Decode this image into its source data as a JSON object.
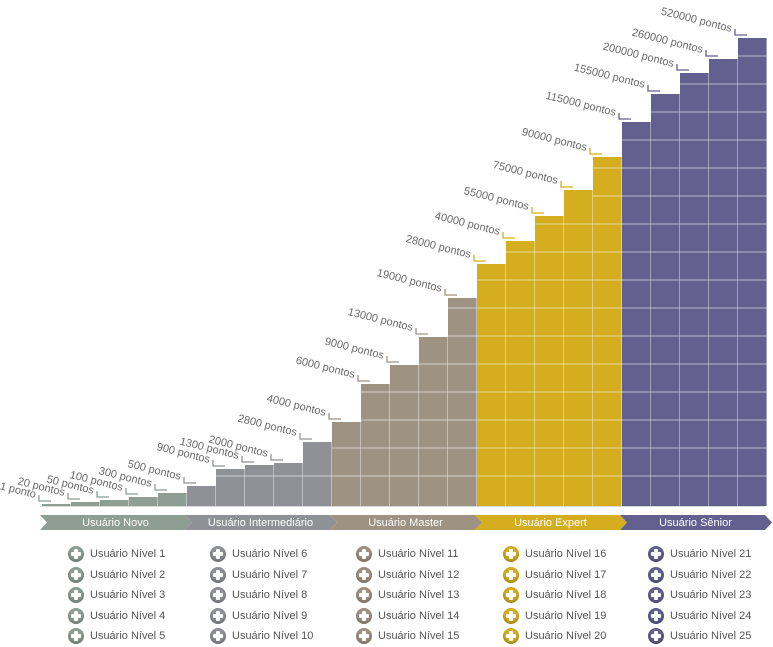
{
  "chart_data": {
    "type": "bar",
    "title": "",
    "xlabel": "",
    "ylabel": "",
    "groups": [
      {
        "name": "Usuário Novo",
        "color": "#8e9e94",
        "levels": [
          "Usuário Nível 1",
          "Usuário Nível 2",
          "Usuário Nível 3",
          "Usuário Nível 4",
          "Usuário Nível 5"
        ],
        "labels": [
          "1 ponto",
          "20 pontos",
          "50 pontos",
          "100 pontos",
          "300 pontos"
        ],
        "values": [
          1,
          20,
          50,
          100,
          300
        ]
      },
      {
        "name": "Usuário Intermediário",
        "color": "#8f9196",
        "levels": [
          "Usuário Nível 6",
          "Usuário Nível 7",
          "Usuário Nível 8",
          "Usuário Nível 9",
          "Usuário Nível 10"
        ],
        "labels": [
          "500 pontos",
          "900 pontos",
          "1300 pontos",
          "2000 pontos",
          "2800 pontos"
        ],
        "values": [
          500,
          900,
          1300,
          2000,
          2800
        ]
      },
      {
        "name": "Usuário Master",
        "color": "#9e9282",
        "levels": [
          "Usuário Nível 11",
          "Usuário Nível 12",
          "Usuário Nível 13",
          "Usuário Nível 14",
          "Usuário Nível 15"
        ],
        "labels": [
          "4000 pontos",
          "6000 pontos",
          "9000 pontos",
          "13000 pontos",
          "19000 pontos"
        ],
        "values": [
          4000,
          6000,
          9000,
          13000,
          19000
        ]
      },
      {
        "name": "Usuário Expert",
        "color": "#d4ae1e",
        "levels": [
          "Usuário Nível 16",
          "Usuário Nível 17",
          "Usuário Nível 18",
          "Usuário Nível 19",
          "Usuário Nível 20"
        ],
        "labels": [
          "28000 pontos",
          "40000 pontos",
          "55000 pontos",
          "75000 pontos",
          "90000 pontos"
        ],
        "values": [
          28000,
          40000,
          55000,
          75000,
          90000
        ]
      },
      {
        "name": "Usuário Sênior",
        "color": "#635f8f",
        "levels": [
          "Usuário Nível 21",
          "Usuário Nível 22",
          "Usuário Nível 23",
          "Usuário Nível 24",
          "Usuário Nível 25"
        ],
        "labels": [
          "115000 pontos",
          "155000 pontos",
          "200000 pontos",
          "260000 pontos",
          "520000 pontos"
        ],
        "values": [
          115000,
          155000,
          200000,
          260000,
          520000
        ]
      }
    ]
  }
}
